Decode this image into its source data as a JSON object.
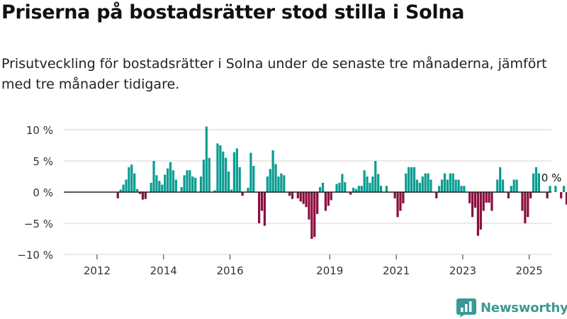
{
  "header": {
    "title": "Priserna på bostadsrätter stod stilla i Solna",
    "subtitle": "Prisutveckling för bostadsrätter i Solna under de senaste tre månaderna, jämfört med tre månader tidigare."
  },
  "brand": {
    "name": "Newsworthy"
  },
  "colors": {
    "positive": "#0a9c91",
    "negative": "#8c0d3f",
    "brand": "#3a9a93"
  },
  "chart_data": {
    "type": "bar",
    "title": "Priserna på bostadsrätter stod stilla i Solna",
    "subtitle": "Prisutveckling för bostadsrätter i Solna under de senaste tre månaderna, jämfört med tre månader tidigare.",
    "ylim": [
      -10,
      10
    ],
    "y_ticks": [
      10,
      5,
      0,
      -5,
      -10
    ],
    "y_tick_labels": [
      "10 %",
      "5 %",
      "0 %",
      "−5 %",
      "−10 %"
    ],
    "x_tick_labels": [
      "2012",
      "2014",
      "2016",
      "2019",
      "2021",
      "2023",
      "2025"
    ],
    "start": "2011-01",
    "end": "2025-08",
    "grid": true,
    "annotation": {
      "label": "0 %",
      "value": 0
    },
    "values": [
      0,
      0,
      0,
      0,
      0,
      0,
      0,
      0,
      0,
      0,
      0,
      0,
      0,
      0,
      0,
      0,
      0,
      0,
      0,
      -1,
      0.4,
      1.2,
      2,
      4,
      4.4,
      3,
      0.5,
      -0.3,
      -1.2,
      -1.1,
      0,
      1.5,
      5,
      2.7,
      1.8,
      1.2,
      2.8,
      3.8,
      4.8,
      3.5,
      2,
      0,
      0.8,
      2.7,
      3.5,
      3.5,
      2.5,
      2.3,
      0,
      2.5,
      5.2,
      10.5,
      5.5,
      0,
      0.3,
      7.8,
      7.5,
      6.5,
      5.5,
      3.3,
      0.4,
      6.4,
      7,
      4,
      -0.6,
      0,
      0.7,
      6.3,
      4.2,
      0,
      -5,
      -3,
      -5.4,
      2.5,
      3.7,
      6.7,
      4.5,
      2.5,
      3,
      2.7,
      0,
      -0.6,
      -1.1,
      0,
      -1,
      -1.5,
      -1.9,
      -2.4,
      -4.4,
      -7.5,
      -7.2,
      -3.5,
      0.8,
      1.5,
      -3,
      -2.2,
      -1.3,
      0,
      1.3,
      1.5,
      2.9,
      1.6,
      0,
      -0.4,
      0.7,
      0.5,
      1,
      1,
      3.5,
      2.5,
      1.5,
      2.5,
      5,
      2.9,
      1,
      0,
      1,
      0,
      0,
      -1,
      -4,
      -3,
      -1.8,
      3,
      4,
      4,
      4,
      2,
      1.5,
      2.5,
      3,
      3,
      2,
      0,
      -1,
      1,
      2,
      3,
      2,
      3,
      3,
      2,
      2,
      1,
      1,
      0,
      -1.8,
      -4,
      -2.5,
      -7,
      -6,
      -3,
      -1.7,
      -1.7,
      -3,
      0,
      2,
      4,
      2,
      0,
      -1,
      1,
      2,
      2,
      0,
      -3,
      -5,
      -4,
      -1,
      3,
      4,
      3,
      0,
      0,
      -1,
      1,
      0,
      1,
      0,
      -1,
      1,
      -2,
      0,
      -2,
      0,
      0
    ]
  }
}
